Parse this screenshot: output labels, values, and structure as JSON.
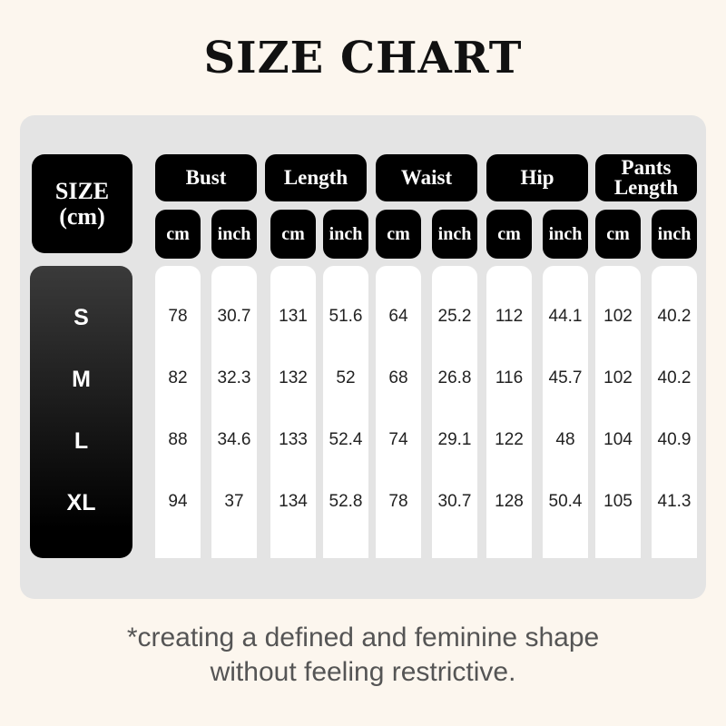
{
  "title": "SIZE CHART",
  "size_header": [
    "SIZE",
    "(cm)"
  ],
  "groups": [
    "Bust",
    "Length",
    "Waist",
    "Hip",
    "Pants Length"
  ],
  "units": [
    "cm",
    "inch"
  ],
  "sizes": [
    "S",
    "M",
    "L",
    "XL"
  ],
  "rows": [
    [
      "78",
      "30.7",
      "131",
      "51.6",
      "64",
      "25.2",
      "112",
      "44.1",
      "102",
      "40.2"
    ],
    [
      "82",
      "32.3",
      "132",
      "52",
      "68",
      "26.8",
      "116",
      "45.7",
      "102",
      "40.2"
    ],
    [
      "88",
      "34.6",
      "133",
      "52.4",
      "74",
      "29.1",
      "122",
      "48",
      "104",
      "40.9"
    ],
    [
      "94",
      "37",
      "134",
      "52.8",
      "78",
      "30.7",
      "128",
      "50.4",
      "105",
      "41.3"
    ]
  ],
  "footnote": [
    "*creating a defined and feminine shape",
    "without feeling restrictive."
  ],
  "colors": {
    "background": "#fcf6ee",
    "panel": "#e4e4e4",
    "header": "#000000",
    "cell": "#ffffff"
  }
}
